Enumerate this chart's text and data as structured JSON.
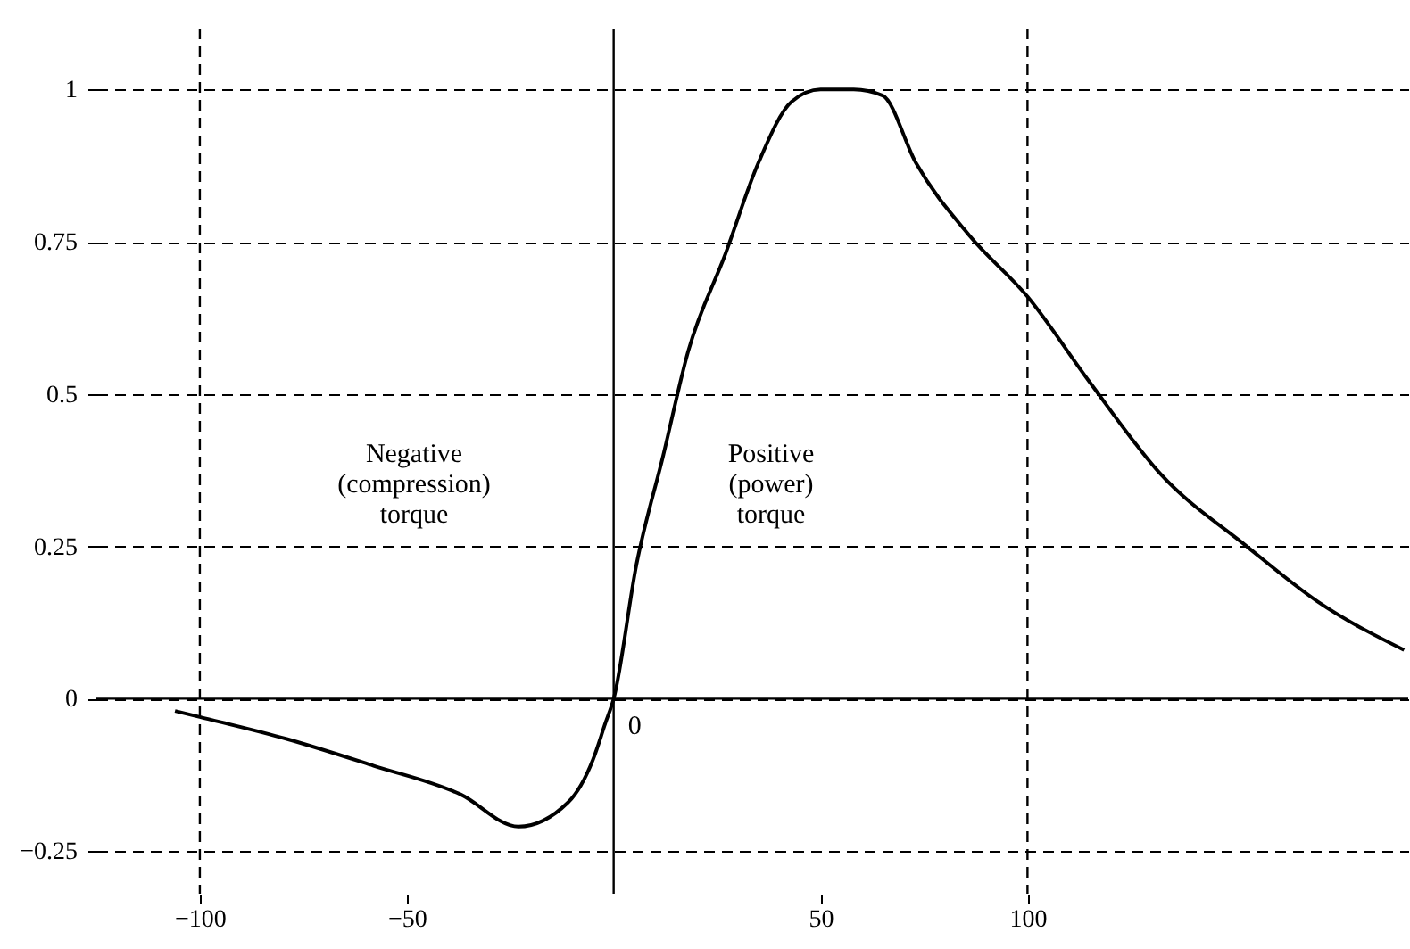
{
  "chart_data": {
    "type": "line",
    "x": [
      -106,
      -100,
      -79,
      -58,
      -37,
      -23,
      -11,
      -5,
      -2,
      0,
      5.5,
      12,
      18,
      27,
      35,
      43,
      50,
      58,
      65,
      73,
      86,
      100,
      115,
      132,
      153,
      170,
      191
    ],
    "series": [
      {
        "color": "#000000",
        "values": [
          -0.02,
          -0.03,
          -0.066,
          -0.11,
          -0.157,
          -0.21,
          -0.17,
          -0.1,
          -0.04,
          0,
          0.22,
          0.4,
          0.57,
          0.73,
          0.88,
          0.98,
          1.0,
          1.0,
          0.99,
          0.88,
          0.76,
          0.66,
          0.52,
          0.37,
          0.25,
          0.16,
          0.08
        ]
      }
    ],
    "xlim": [
      -125,
      192
    ],
    "ylim": [
      -0.32,
      1.1
    ],
    "xticks": [
      -100,
      -50,
      50,
      100
    ],
    "yticks": [
      -0.25,
      0,
      0.25,
      0.5,
      0.75,
      1
    ],
    "grid": "y",
    "marker": "none",
    "line_style": "solid",
    "ref_lines": [
      {
        "axis": "x",
        "value": 0,
        "line_style": "solid"
      },
      {
        "axis": "y",
        "value": 0,
        "line_style": "solid"
      },
      {
        "axis": "x",
        "value": -100,
        "line_style": "dashed"
      },
      {
        "axis": "x",
        "value": 100,
        "line_style": "dashed"
      }
    ],
    "annotations": [
      "Negative\n(compression)\ntorque",
      "Positive\n(power)\ntorque",
      {
        "text": "0",
        "x": 0,
        "y": 0
      }
    ]
  }
}
